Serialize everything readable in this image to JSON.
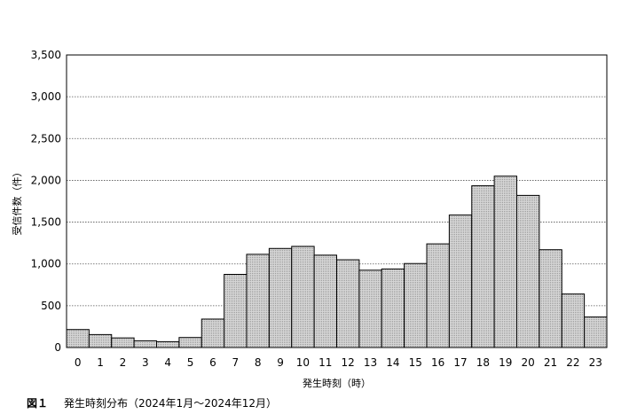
{
  "chart_data": {
    "type": "bar",
    "categories": [
      "0",
      "1",
      "2",
      "3",
      "4",
      "5",
      "6",
      "7",
      "8",
      "9",
      "10",
      "11",
      "12",
      "13",
      "14",
      "15",
      "16",
      "17",
      "18",
      "19",
      "20",
      "21",
      "22",
      "23"
    ],
    "values": [
      215,
      155,
      115,
      80,
      70,
      120,
      340,
      875,
      1115,
      1185,
      1210,
      1105,
      1050,
      925,
      940,
      1005,
      1240,
      1585,
      1935,
      2050,
      1820,
      1170,
      640,
      365
    ],
    "xlabel": "発生時刻（時）",
    "ylabel": "受信件数（件）",
    "ylim": [
      0,
      3500
    ],
    "yticks": [
      0,
      500,
      1000,
      1500,
      2000,
      2500,
      3000,
      3500
    ],
    "ytick_labels": [
      "0",
      "500",
      "1,000",
      "1,500",
      "2,000",
      "2,500",
      "3,000",
      "3,500"
    ],
    "grid": "horizontal-dotted",
    "bar_color": "#c8c8c8"
  },
  "caption": {
    "figure_label": "図１",
    "text": "発生時刻分布（2024年1月～2024年12月）"
  }
}
